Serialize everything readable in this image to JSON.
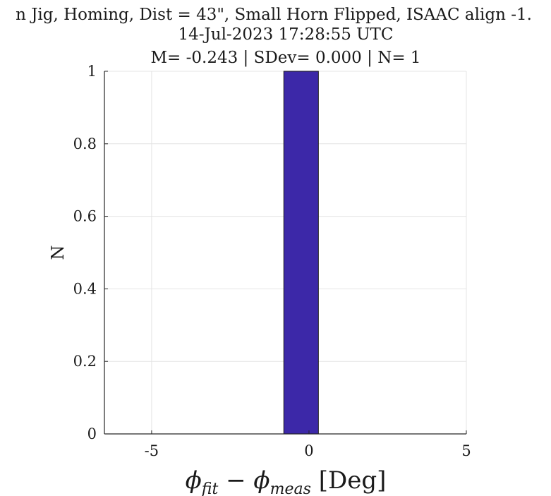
{
  "chart_data": {
    "type": "bar",
    "title_lines": [
      "n Jig, Homing, Dist = 43\", Small Horn Flipped, ISAAC align -1.",
      "14-Jul-2023 17:28:55 UTC",
      "M= -0.243 | SDev= 0.000 | N= 1"
    ],
    "xlabel": "ϕfit − ϕmeas [Deg]",
    "xlabel_parts": {
      "phi": "ϕ",
      "sub1": "fit",
      "minus": "−",
      "sub2": "meas",
      "unit": "[Deg]"
    },
    "ylabel": "N",
    "xlim": [
      -6.5,
      5.0
    ],
    "ylim": [
      0,
      1
    ],
    "xticks": [
      -5,
      0,
      5
    ],
    "xtick_labels": [
      "-5",
      "0",
      "5"
    ],
    "yticks": [
      0,
      0.2,
      0.4,
      0.6,
      0.8,
      1
    ],
    "ytick_labels": [
      "0",
      "0.2",
      "0.4",
      "0.6",
      "0.8",
      "1"
    ],
    "grid": true,
    "bins": [
      {
        "x_start": -0.8,
        "x_end": 0.3,
        "count": 1
      }
    ],
    "bar_color": "#3c28a8"
  }
}
